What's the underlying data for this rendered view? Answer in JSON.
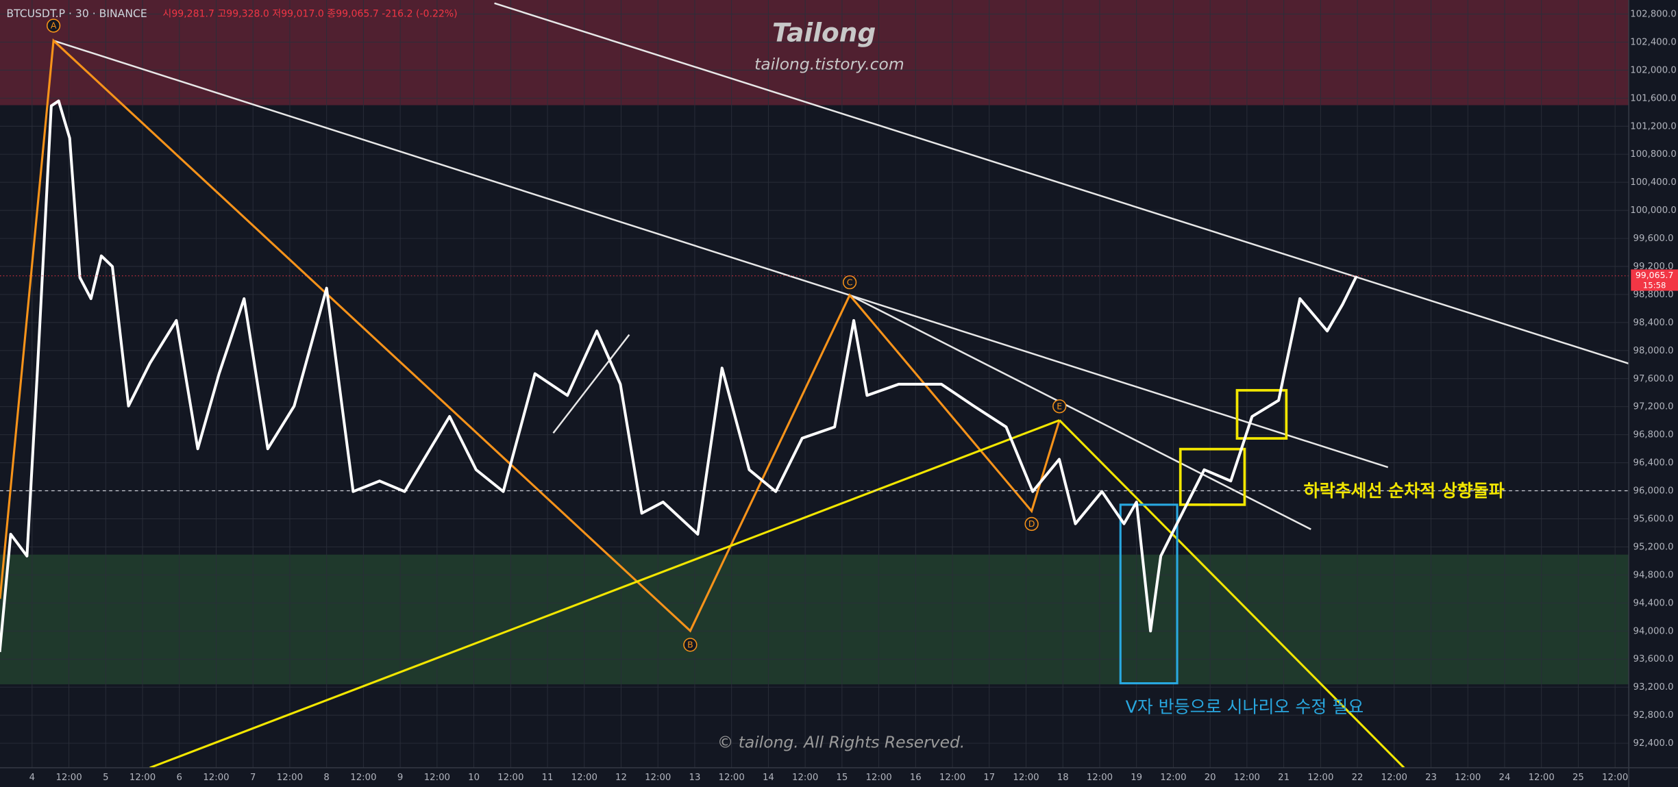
{
  "header": {
    "symbol": "BTCUSDT.P · 30 · BINANCE",
    "ohlc": "시99,281.7 고99,328.0 저99,017.0 종99,065.7 -216.2 (-0.22%)"
  },
  "watermark": {
    "title": "Tailong",
    "url": "tailong.tistory.com",
    "copyright": "© tailong. All Rights Reserved."
  },
  "annotations": {
    "breakout": "하락추세선 순차적 상향돌파",
    "v_rebound": "V자 반등으로 시나리오 수정 필요",
    "points": [
      "A",
      "B",
      "C",
      "D",
      "E"
    ]
  },
  "chart_data": {
    "type": "line",
    "x": [
      3.56,
      3.71,
      3.93,
      4.07,
      4.26,
      4.36,
      4.51,
      4.65,
      4.8,
      4.94,
      5.09,
      5.31,
      5.6,
      5.96,
      6.25,
      6.54,
      6.88,
      7.2,
      7.56,
      8.0,
      8.36,
      8.72,
      9.06,
      9.67,
      10.03,
      10.4,
      10.83,
      11.27,
      11.67,
      11.99,
      12.28,
      12.57,
      13.04,
      13.37,
      13.74,
      14.1,
      14.46,
      14.9,
      15.16,
      15.34,
      15.77,
      16.35,
      16.79,
      17.23,
      17.59,
      17.95,
      18.17,
      18.53,
      18.83,
      19.0,
      19.19,
      19.33,
      19.55,
      19.92,
      20.28,
      20.57,
      20.93,
      21.22,
      21.59,
      21.8,
      21.99
    ],
    "series": [
      {
        "color": "#ffffff",
        "values": [
          93700,
          95380,
          95070,
          97670,
          101490,
          101560,
          101030,
          99040,
          98740,
          99350,
          99200,
          97210,
          97820,
          98430,
          96600,
          97670,
          98740,
          96600,
          97210,
          98890,
          95990,
          96140,
          95990,
          97060,
          96300,
          95990,
          97670,
          97360,
          98280,
          97520,
          95680,
          95840,
          95380,
          97750,
          96300,
          95990,
          96750,
          96910,
          98430,
          97360,
          97520,
          97520,
          97210,
          96910,
          95990,
          96450,
          95530,
          95990,
          95530,
          95840,
          94000,
          95070,
          95530,
          96300,
          96140,
          97060,
          97290,
          98740,
          98280,
          98660,
          99065.7
        ]
      }
    ],
    "xlim": [
      3.564,
      25.686
    ],
    "ylim": [
      92050,
      103000
    ],
    "xticks": [
      4,
      {
        "value": 4.5,
        "label": "12:00"
      },
      5,
      {
        "value": 5.5,
        "label": "12:00"
      },
      6,
      {
        "value": 6.5,
        "label": "12:00"
      },
      7,
      {
        "value": 7.5,
        "label": "12:00"
      },
      8,
      {
        "value": 8.5,
        "label": "12:00"
      },
      9,
      {
        "value": 9.5,
        "label": "12:00"
      },
      10,
      {
        "value": 10.5,
        "label": "12:00"
      },
      11,
      {
        "value": 11.5,
        "label": "12:00"
      },
      12,
      {
        "value": 12.5,
        "label": "12:00"
      },
      13,
      {
        "value": 13.5,
        "label": "12:00"
      },
      14,
      {
        "value": 14.5,
        "label": "12:00"
      },
      15,
      {
        "value": 15.5,
        "label": "12:00"
      },
      16,
      {
        "value": 16.5,
        "label": "12:00"
      },
      17,
      {
        "value": 17.5,
        "label": "12:00"
      },
      18,
      {
        "value": 18.5,
        "label": "12:00"
      },
      19,
      {
        "value": 19.5,
        "label": "12:00"
      },
      20,
      {
        "value": 20.5,
        "label": "12:00"
      },
      21,
      {
        "value": 21.5,
        "label": "12:00"
      },
      22,
      {
        "value": 22.5,
        "label": "12:00"
      },
      23,
      {
        "value": 23.5,
        "label": "12:00"
      },
      24,
      {
        "value": 24.5,
        "label": "12:00"
      },
      25,
      {
        "value": 25.5,
        "label": "12:00"
      }
    ],
    "yticks": [
      {
        "value": 92400,
        "label": "92,400.0"
      },
      {
        "value": 92800,
        "label": "92,800.0"
      },
      {
        "value": 93200,
        "label": "93,200.0"
      },
      {
        "value": 93600,
        "label": "93,600.0"
      },
      {
        "value": 94000,
        "label": "94,000.0"
      },
      {
        "value": 94400,
        "label": "94,400.0"
      },
      {
        "value": 94800,
        "label": "94,800.0"
      },
      {
        "value": 95200,
        "label": "95,200.0"
      },
      {
        "value": 95600,
        "label": "95,600.0"
      },
      {
        "value": 96000,
        "label": "96,000.0"
      },
      {
        "value": 96400,
        "label": "96,400.0"
      },
      {
        "value": 96800,
        "label": "96,800.0"
      },
      {
        "value": 97200,
        "label": "97,200.0"
      },
      {
        "value": 97600,
        "label": "97,600.0"
      },
      {
        "value": 98000,
        "label": "98,000.0"
      },
      {
        "value": 98400,
        "label": "98,400.0"
      },
      {
        "value": 98800,
        "label": "98,800.0"
      },
      {
        "value": 99200,
        "label": "99,200.0"
      },
      {
        "value": 99600,
        "label": "99,600.0"
      },
      {
        "value": 100000,
        "label": "100,000.0"
      },
      {
        "value": 100400,
        "label": "100,400.0"
      },
      {
        "value": 100800,
        "label": "100,800.0"
      },
      {
        "value": 101200,
        "label": "101,200.0"
      },
      {
        "value": 101600,
        "label": "101,600.0"
      },
      {
        "value": 102000,
        "label": "102,000.0"
      },
      {
        "value": 102400,
        "label": "102,400.0"
      },
      {
        "value": 102800,
        "label": "102,800.0"
      }
    ],
    "grid": true,
    "zones": [
      {
        "from": 101500,
        "to": 103000,
        "color": "#5c2232"
      },
      {
        "from": 93240,
        "to": 95090,
        "color": "#22402e"
      }
    ],
    "hline": 96000,
    "last_price": {
      "value": 99065.7,
      "label": "99,065.7"
    },
    "countdown": "15:58"
  }
}
